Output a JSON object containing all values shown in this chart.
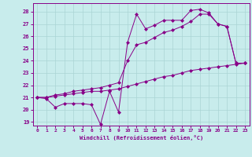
{
  "xlabel": "Windchill (Refroidissement éolien,°C)",
  "background_color": "#c8ecec",
  "line_color": "#880088",
  "grid_color": "#aad4d4",
  "xlim": [
    -0.5,
    23.5
  ],
  "ylim": [
    18.7,
    28.7
  ],
  "yticks": [
    19,
    20,
    21,
    22,
    23,
    24,
    25,
    26,
    27,
    28
  ],
  "xticks": [
    0,
    1,
    2,
    3,
    4,
    5,
    6,
    7,
    8,
    9,
    10,
    11,
    12,
    13,
    14,
    15,
    16,
    17,
    18,
    19,
    20,
    21,
    22,
    23
  ],
  "series": [
    {
      "x": [
        0,
        1,
        2,
        3,
        4,
        5,
        6,
        7,
        8,
        9,
        10,
        11,
        12,
        13,
        14,
        15,
        16,
        17,
        18,
        19,
        20,
        21,
        22,
        23
      ],
      "y": [
        21.0,
        20.9,
        20.2,
        20.5,
        20.5,
        20.5,
        20.4,
        18.8,
        21.5,
        19.8,
        25.5,
        27.8,
        26.6,
        26.9,
        27.3,
        27.3,
        27.3,
        28.1,
        28.2,
        27.9,
        27.0,
        26.8,
        23.8,
        23.8
      ]
    },
    {
      "x": [
        0,
        1,
        2,
        3,
        4,
        5,
        6,
        7,
        8,
        9,
        10,
        11,
        12,
        13,
        14,
        15,
        16,
        17,
        18,
        19,
        20,
        21,
        22,
        23
      ],
      "y": [
        21.0,
        21.0,
        21.1,
        21.2,
        21.3,
        21.4,
        21.5,
        21.5,
        21.6,
        21.7,
        21.9,
        22.1,
        22.3,
        22.5,
        22.7,
        22.8,
        23.0,
        23.2,
        23.3,
        23.4,
        23.5,
        23.6,
        23.7,
        23.8
      ]
    },
    {
      "x": [
        0,
        1,
        2,
        3,
        4,
        5,
        6,
        7,
        8,
        9,
        10,
        11,
        12,
        13,
        14,
        15,
        16,
        17,
        18,
        19,
        20,
        21,
        22,
        23
      ],
      "y": [
        21.0,
        21.0,
        21.2,
        21.3,
        21.5,
        21.6,
        21.7,
        21.8,
        22.0,
        22.2,
        24.0,
        25.3,
        25.5,
        25.9,
        26.3,
        26.5,
        26.8,
        27.2,
        27.8,
        27.8,
        27.0,
        26.8,
        23.8,
        23.8
      ]
    }
  ]
}
